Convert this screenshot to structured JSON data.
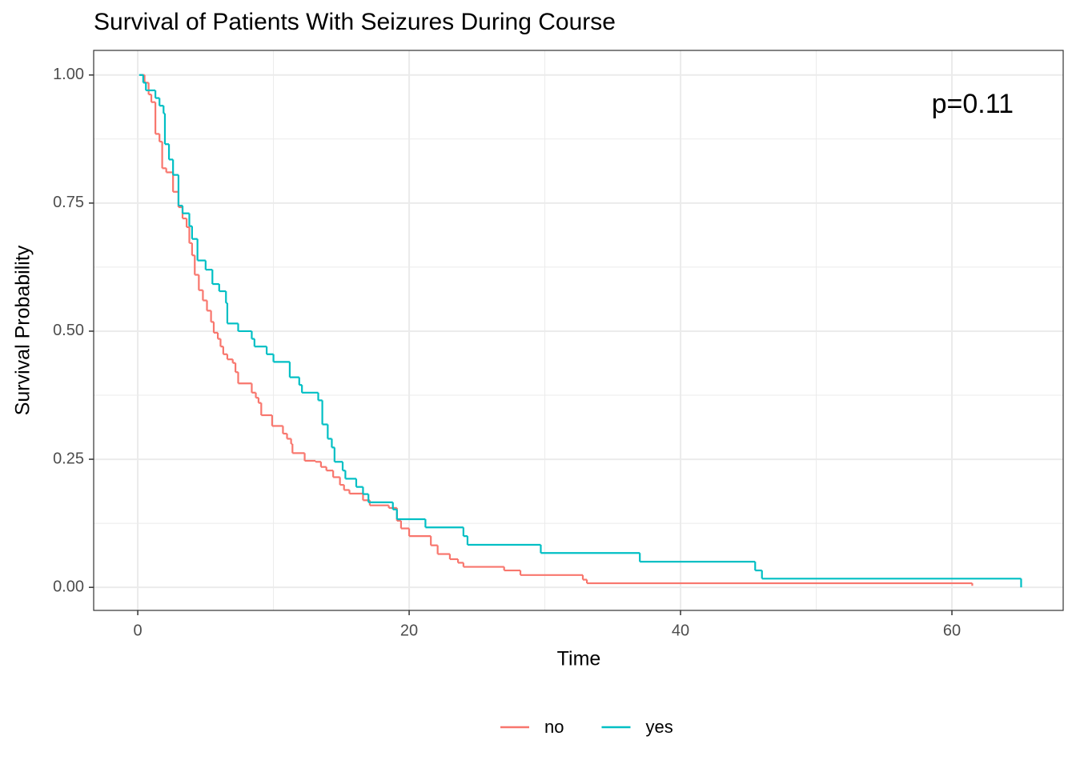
{
  "chart_data": {
    "type": "step",
    "title": "Survival of Patients With Seizures During Course",
    "x_label": "Time",
    "y_label": "Survival Probability",
    "annotations": [
      "p=0.11"
    ],
    "xlim": [
      -3.25,
      68.2
    ],
    "ylim": [
      -0.045,
      1.048
    ],
    "xticks": [
      0,
      20,
      40,
      60
    ],
    "yticks": [
      {
        "value": 0,
        "label": "0.00"
      },
      {
        "value": 0.25,
        "label": "0.25"
      },
      {
        "value": 0.5,
        "label": "0.50"
      },
      {
        "value": 0.75,
        "label": "0.75"
      },
      {
        "value": 1,
        "label": "1.00"
      }
    ],
    "grid": true,
    "legend": "bottom",
    "series": [
      {
        "name": "no",
        "color": "#F8766D",
        "x": [
          0.2,
          0.5,
          0.8,
          1.0,
          1.3,
          1.6,
          1.8,
          2.1,
          2.6,
          3.0,
          3.3,
          3.6,
          3.8,
          4.0,
          4.2,
          4.5,
          4.8,
          5.1,
          5.4,
          5.6,
          5.9,
          6.1,
          6.3,
          6.6,
          7.0,
          7.2,
          7.4,
          8.4,
          8.7,
          8.9,
          9.1,
          9.9,
          10.7,
          11.0,
          11.3,
          11.4,
          12.3,
          13.1,
          13.5,
          13.9,
          14.4,
          14.9,
          15.2,
          15.6,
          16.6,
          17.1,
          18.5,
          19.1,
          19.4,
          20.0,
          21.6,
          22.1,
          23.0,
          23.6,
          24.0,
          27.0,
          28.2,
          32.8,
          33.1,
          61.5
        ],
        "values": [
          1.0,
          0.985,
          0.962,
          0.947,
          0.885,
          0.87,
          0.818,
          0.81,
          0.772,
          0.742,
          0.72,
          0.703,
          0.672,
          0.648,
          0.61,
          0.58,
          0.56,
          0.54,
          0.518,
          0.497,
          0.485,
          0.47,
          0.455,
          0.445,
          0.438,
          0.42,
          0.398,
          0.38,
          0.37,
          0.36,
          0.336,
          0.315,
          0.3,
          0.29,
          0.28,
          0.262,
          0.247,
          0.245,
          0.235,
          0.228,
          0.215,
          0.2,
          0.19,
          0.183,
          0.17,
          0.16,
          0.155,
          0.13,
          0.115,
          0.1,
          0.082,
          0.065,
          0.055,
          0.048,
          0.04,
          0.033,
          0.024,
          0.015,
          0.008,
          0.003
        ]
      },
      {
        "name": "yes",
        "color": "#00BFC4",
        "x": [
          0.1,
          0.4,
          0.6,
          1.3,
          1.6,
          1.9,
          2.0,
          2.3,
          2.6,
          3.0,
          3.3,
          3.8,
          4.0,
          4.4,
          5.0,
          5.5,
          6.0,
          6.5,
          6.6,
          7.4,
          8.4,
          8.6,
          9.5,
          10.0,
          11.2,
          11.9,
          12.1,
          13.3,
          13.6,
          14.0,
          14.3,
          14.5,
          15.1,
          15.3,
          16.1,
          16.6,
          17.0,
          18.8,
          19.1,
          21.2,
          24.0,
          24.3,
          29.7,
          37.0,
          45.5,
          46.0,
          65.1
        ],
        "values": [
          1.0,
          0.985,
          0.97,
          0.955,
          0.94,
          0.925,
          0.865,
          0.835,
          0.805,
          0.745,
          0.73,
          0.705,
          0.68,
          0.638,
          0.62,
          0.592,
          0.578,
          0.555,
          0.515,
          0.5,
          0.485,
          0.47,
          0.455,
          0.44,
          0.41,
          0.395,
          0.38,
          0.365,
          0.318,
          0.29,
          0.273,
          0.245,
          0.228,
          0.212,
          0.196,
          0.182,
          0.166,
          0.152,
          0.133,
          0.117,
          0.1,
          0.083,
          0.067,
          0.05,
          0.033,
          0.017,
          0.0
        ]
      }
    ]
  }
}
